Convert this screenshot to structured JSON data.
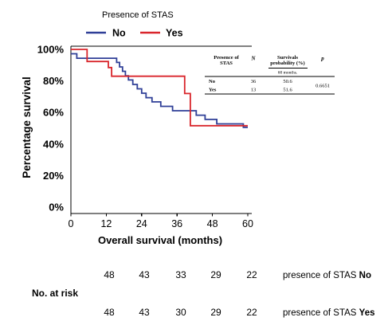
{
  "chart_data": {
    "type": "line",
    "step": true,
    "legend_title": "Presence of STAS",
    "legend_position": "top",
    "xlabel": "Overall survival (months)",
    "ylabel": "Percentage survival",
    "xlim": [
      0,
      60
    ],
    "ylim": [
      0,
      100
    ],
    "grid": false,
    "x_ticks": [
      0,
      12,
      24,
      36,
      48,
      60
    ],
    "y_ticks": [
      {
        "value": 100,
        "label": "100%"
      },
      {
        "value": 80,
        "label": "80%"
      },
      {
        "value": 60,
        "label": "60%"
      },
      {
        "value": 40,
        "label": "40%"
      },
      {
        "value": 20,
        "label": "20%"
      },
      {
        "value": 0,
        "label": "0%"
      }
    ],
    "series": [
      {
        "name": "No",
        "color": "#2f3f97",
        "points": [
          [
            0,
            97.2
          ],
          [
            2,
            94.4
          ],
          [
            15.5,
            91.7
          ],
          [
            16.5,
            88.9
          ],
          [
            17.5,
            86.1
          ],
          [
            18.5,
            83.3
          ],
          [
            19.5,
            80.6
          ],
          [
            21,
            77.8
          ],
          [
            22.5,
            75.0
          ],
          [
            24,
            72.2
          ],
          [
            25.5,
            69.4
          ],
          [
            27.5,
            66.7
          ],
          [
            30.5,
            63.9
          ],
          [
            34.5,
            61.1
          ],
          [
            42.5,
            58.3
          ],
          [
            45.5,
            55.6
          ],
          [
            49.5,
            52.8
          ],
          [
            58.5,
            50.6
          ],
          [
            60,
            50.6
          ]
        ]
      },
      {
        "name": "Yes",
        "color": "#d9262c",
        "points": [
          [
            0,
            100
          ],
          [
            5.5,
            92.3
          ],
          [
            12.7,
            88.5
          ],
          [
            13.8,
            83.0
          ],
          [
            38.6,
            72.0
          ],
          [
            40.5,
            51.6
          ],
          [
            60,
            51.6
          ]
        ]
      }
    ]
  },
  "inset_table": {
    "headers": {
      "group": [
        "Presence of",
        "STAS"
      ],
      "n": "N",
      "survival": [
        "Survivals",
        "probability (%)"
      ],
      "p": "p"
    },
    "subheader": "60 months.",
    "rows": [
      {
        "group": "No",
        "n": "36",
        "survival": "50.6"
      },
      {
        "group": "Yes",
        "n": "13",
        "survival": "51.6"
      }
    ],
    "p_value": "0.6651"
  },
  "risk_table": {
    "title": "No. at risk",
    "rows": [
      {
        "values": [
          "48",
          "43",
          "33",
          "29",
          "22"
        ],
        "label_prefix": "presence of STAS",
        "group": "No"
      },
      {
        "values": [
          "48",
          "43",
          "30",
          "29",
          "22"
        ],
        "label_prefix": "presence of STAS",
        "group": "Yes"
      }
    ]
  }
}
